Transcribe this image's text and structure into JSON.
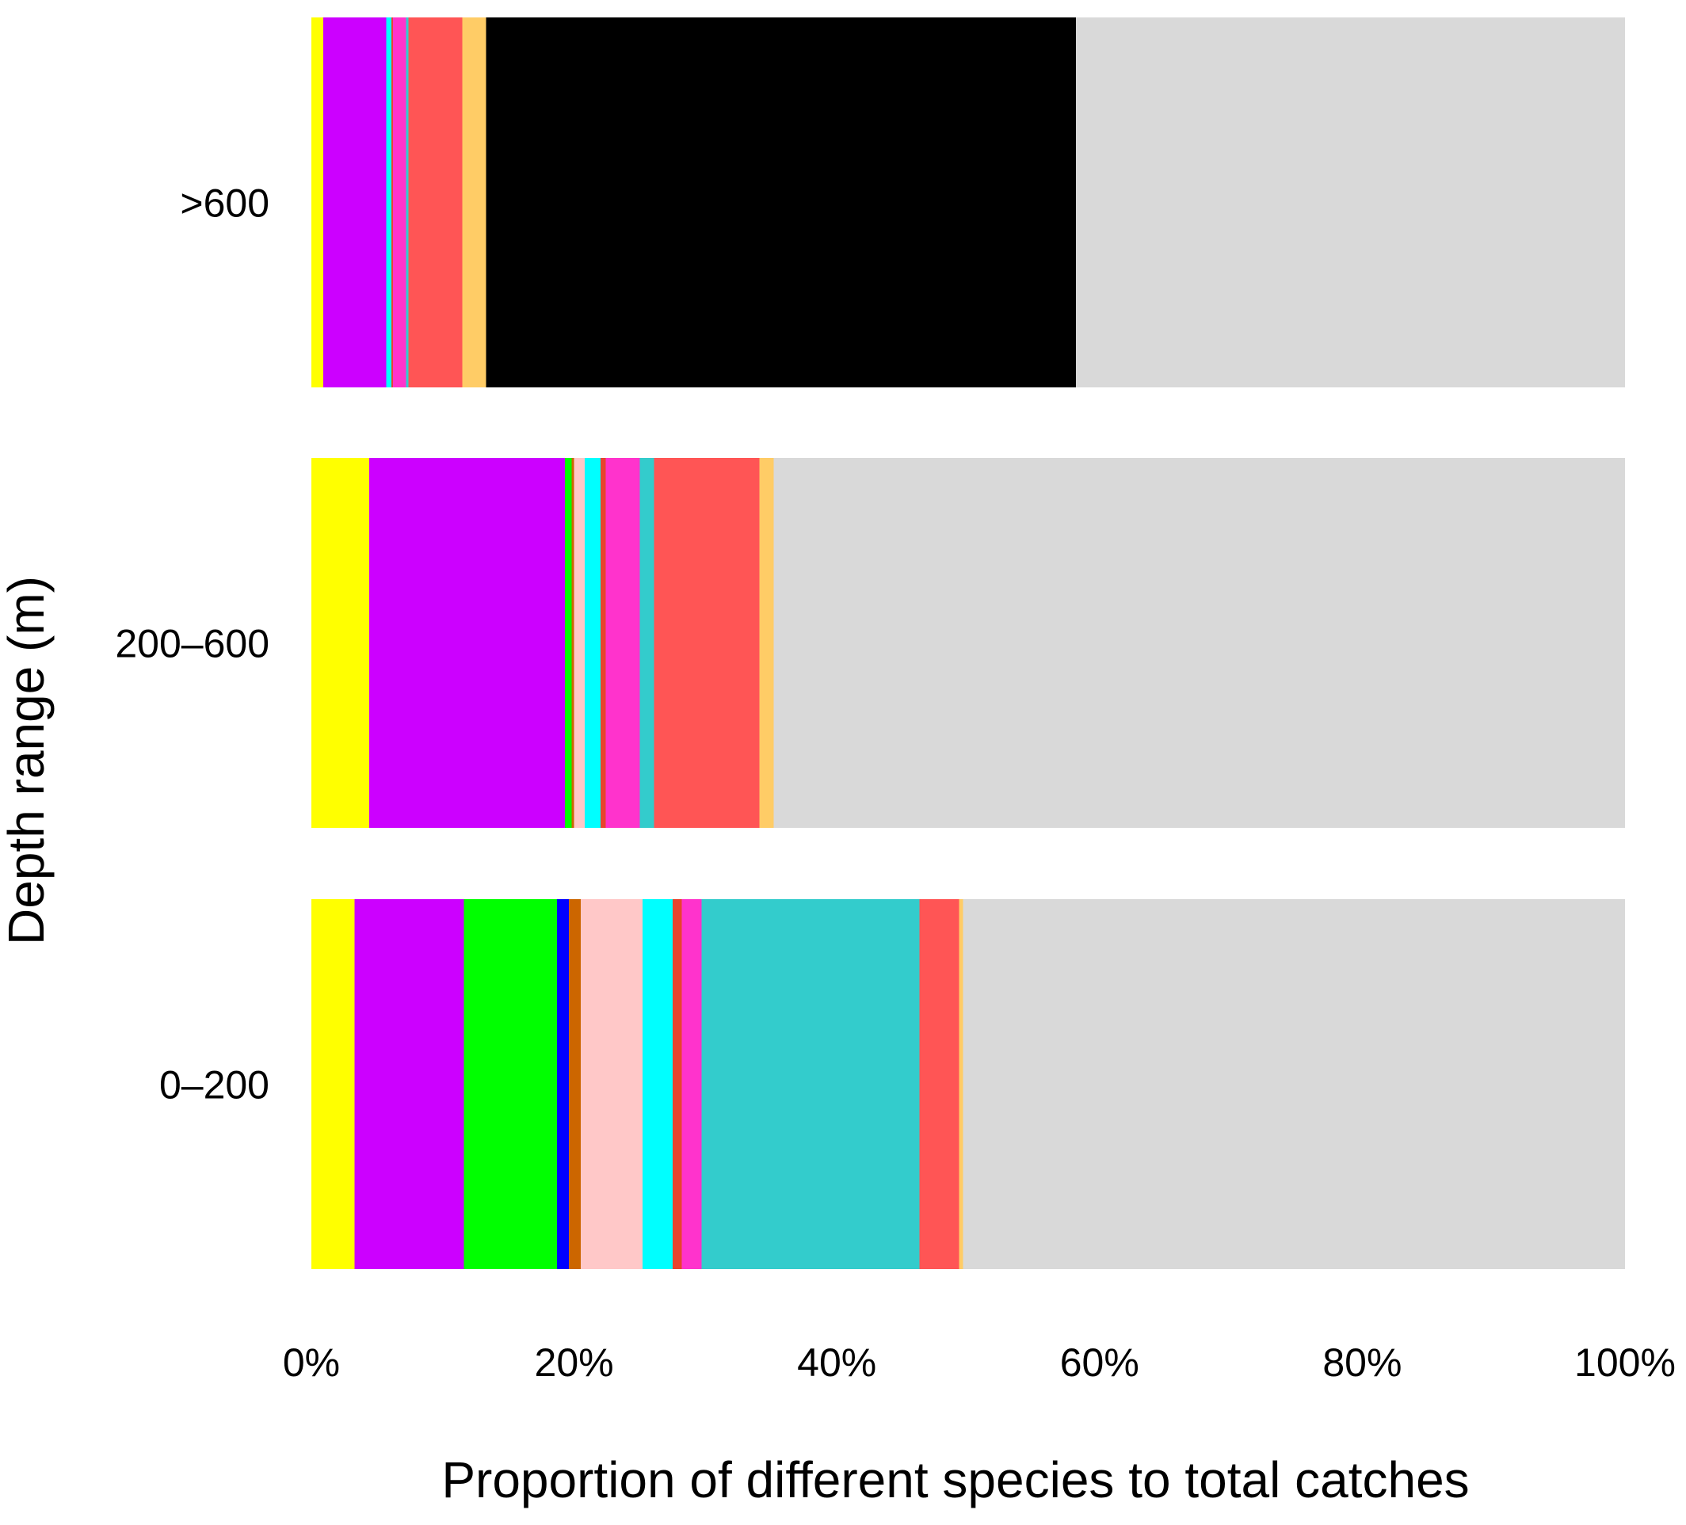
{
  "chart_data": {
    "type": "bar",
    "orientation": "horizontal",
    "stacked": true,
    "xlabel": "Proportion of different species to total catches",
    "ylabel": "Depth range (m)",
    "xlim": [
      0,
      100
    ],
    "x_tick_labels": [
      "0%",
      "20%",
      "40%",
      "60%",
      "80%",
      "100%"
    ],
    "x_ticks": [
      0,
      20,
      40,
      60,
      80,
      100
    ],
    "categories": [
      "0–200",
      "200–600",
      ">600"
    ],
    "grid": false,
    "legend": "none",
    "series": [
      {
        "color": "#FFFF00",
        "values": [
          3.3,
          4.4,
          0.9
        ]
      },
      {
        "color": "#CC00FF",
        "values": [
          8.3,
          14.9,
          4.8
        ]
      },
      {
        "color": "#00FF00",
        "values": [
          7.1,
          0.5,
          0.0
        ]
      },
      {
        "color": "#0000FF",
        "values": [
          0.9,
          0.0,
          0.0
        ]
      },
      {
        "color": "#CC6600",
        "values": [
          0.9,
          0.2,
          0.0
        ]
      },
      {
        "color": "#FFC8C8",
        "values": [
          4.7,
          0.8,
          0.0
        ]
      },
      {
        "color": "#00FFFF",
        "values": [
          2.3,
          1.2,
          0.4
        ]
      },
      {
        "color": "#E8442E",
        "values": [
          0.7,
          0.4,
          0.1
        ]
      },
      {
        "color": "#FF33CC",
        "values": [
          1.5,
          2.6,
          1.0
        ]
      },
      {
        "color": "#33CCCC",
        "values": [
          16.6,
          1.1,
          0.2
        ]
      },
      {
        "color": "#FF5555",
        "values": [
          3.0,
          8.0,
          4.1
        ]
      },
      {
        "color": "#FFCC66",
        "values": [
          0.3,
          1.1,
          1.8
        ]
      },
      {
        "color": "#000000",
        "values": [
          0.0,
          0.0,
          44.9
        ]
      },
      {
        "color": "#D9D9D9",
        "values": [
          50.7,
          64.8,
          41.8
        ]
      }
    ]
  }
}
